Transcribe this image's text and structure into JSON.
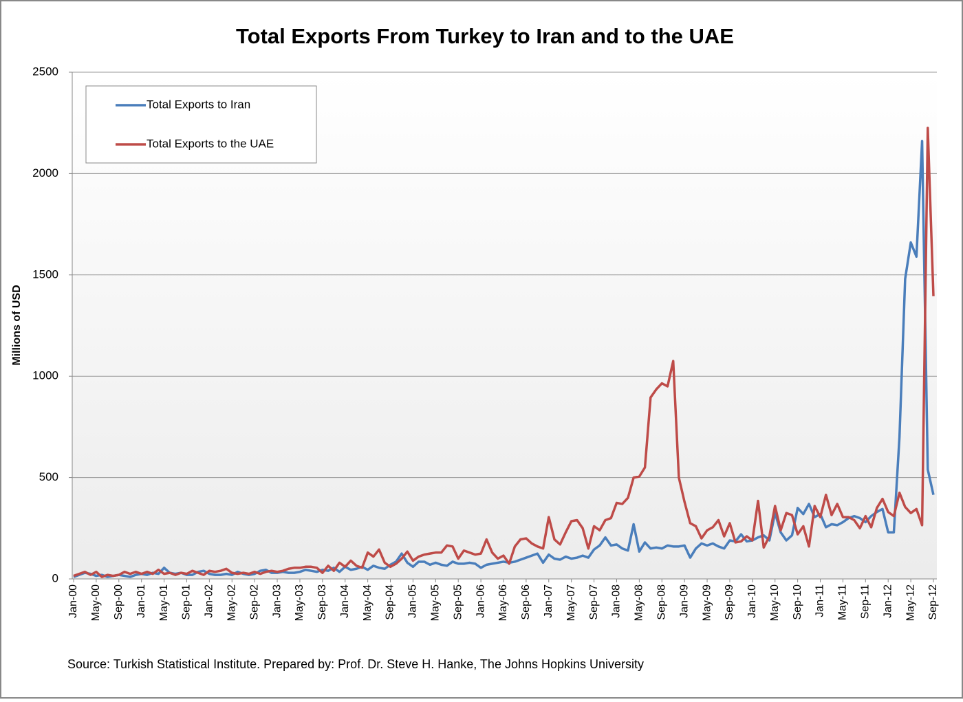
{
  "chart_data": {
    "type": "line",
    "title": "Total Exports From Turkey to Iran and to the UAE",
    "y_label": "Millions of USD",
    "source": "Source: Turkish Statistical Institute. Prepared by: Prof. Dr. Steve H. Hanke, The Johns Hopkins University",
    "categories": [
      "Jan-00",
      null,
      null,
      null,
      "May-00",
      null,
      null,
      null,
      "Sep-00",
      null,
      null,
      null,
      "Jan-01",
      null,
      null,
      null,
      "May-01",
      null,
      null,
      null,
      "Sep-01",
      null,
      null,
      null,
      "Jan-02",
      null,
      null,
      null,
      "May-02",
      null,
      null,
      null,
      "Sep-02",
      null,
      null,
      null,
      "Jan-03",
      null,
      null,
      null,
      "May-03",
      null,
      null,
      null,
      "Sep-03",
      null,
      null,
      null,
      "Jan-04",
      null,
      null,
      null,
      "May-04",
      null,
      null,
      null,
      "Sep-04",
      null,
      null,
      null,
      "Jan-05",
      null,
      null,
      null,
      "May-05",
      null,
      null,
      null,
      "Sep-05",
      null,
      null,
      null,
      "Jan-06",
      null,
      null,
      null,
      "May-06",
      null,
      null,
      null,
      "Sep-06",
      null,
      null,
      null,
      "Jan-07",
      null,
      null,
      null,
      "May-07",
      null,
      null,
      null,
      "Sep-07",
      null,
      null,
      null,
      "Jan-08",
      null,
      null,
      null,
      "May-08",
      null,
      null,
      null,
      "Sep-08",
      null,
      null,
      null,
      "Jan-09",
      null,
      null,
      null,
      "May-09",
      null,
      null,
      null,
      "Sep-09",
      null,
      null,
      null,
      "Jan-10",
      null,
      null,
      null,
      "May-10",
      null,
      null,
      null,
      "Sep-10",
      null,
      null,
      null,
      "Jan-11",
      null,
      null,
      null,
      "May-11",
      null,
      null,
      null,
      "Sep-11",
      null,
      null,
      null,
      "Jan-12",
      null,
      null,
      null,
      "May-12",
      null,
      null,
      null,
      "Sep-12"
    ],
    "series": [
      {
        "name": "Total Exports to Iran",
        "color": "#4a7ebb",
        "values": [
          10,
          20,
          30,
          25,
          15,
          20,
          10,
          15,
          20,
          15,
          10,
          20,
          25,
          20,
          30,
          25,
          55,
          30,
          25,
          30,
          20,
          20,
          35,
          40,
          25,
          20,
          20,
          25,
          20,
          35,
          25,
          20,
          25,
          40,
          45,
          30,
          30,
          35,
          30,
          30,
          35,
          45,
          40,
          35,
          45,
          40,
          55,
          35,
          60,
          45,
          50,
          60,
          45,
          65,
          55,
          50,
          70,
          85,
          125,
          80,
          60,
          85,
          85,
          70,
          80,
          70,
          65,
          85,
          75,
          75,
          80,
          75,
          55,
          70,
          75,
          80,
          85,
          80,
          85,
          95,
          105,
          115,
          125,
          80,
          120,
          100,
          95,
          110,
          100,
          105,
          115,
          105,
          145,
          165,
          205,
          165,
          170,
          150,
          140,
          270,
          135,
          180,
          150,
          155,
          150,
          165,
          160,
          160,
          165,
          105,
          150,
          175,
          165,
          175,
          160,
          150,
          190,
          185,
          220,
          185,
          190,
          205,
          215,
          190,
          325,
          230,
          190,
          215,
          350,
          320,
          370,
          305,
          320,
          255,
          270,
          265,
          280,
          300,
          310,
          300,
          280,
          310,
          330,
          345,
          230,
          230,
          700,
          1480,
          1660,
          1590,
          2160,
          540,
          415
        ]
      },
      {
        "name": "Total Exports to the UAE",
        "color": "#be4b48",
        "values": [
          15,
          25,
          35,
          20,
          35,
          10,
          20,
          15,
          20,
          35,
          25,
          35,
          25,
          35,
          25,
          45,
          25,
          30,
          20,
          30,
          25,
          40,
          30,
          20,
          40,
          35,
          40,
          50,
          30,
          25,
          30,
          25,
          35,
          25,
          35,
          40,
          35,
          40,
          50,
          55,
          55,
          60,
          60,
          55,
          30,
          65,
          40,
          80,
          60,
          90,
          65,
          55,
          130,
          110,
          145,
          80,
          60,
          75,
          100,
          135,
          90,
          110,
          120,
          125,
          130,
          130,
          165,
          160,
          100,
          140,
          130,
          120,
          125,
          195,
          130,
          100,
          115,
          75,
          160,
          195,
          200,
          175,
          160,
          150,
          305,
          195,
          170,
          230,
          285,
          290,
          250,
          150,
          260,
          240,
          290,
          300,
          375,
          370,
          400,
          500,
          505,
          550,
          895,
          935,
          965,
          950,
          1075,
          500,
          380,
          275,
          260,
          200,
          240,
          255,
          290,
          210,
          275,
          180,
          185,
          210,
          190,
          385,
          155,
          210,
          360,
          240,
          325,
          315,
          220,
          260,
          160,
          360,
          305,
          415,
          315,
          370,
          305,
          305,
          290,
          250,
          310,
          255,
          350,
          395,
          330,
          310,
          425,
          355,
          325,
          345,
          265,
          2225,
          1395
        ]
      }
    ],
    "ylim": [
      0,
      2500
    ],
    "yticks": [
      0,
      500,
      1000,
      1500,
      2000,
      2500
    ],
    "grid": true
  }
}
